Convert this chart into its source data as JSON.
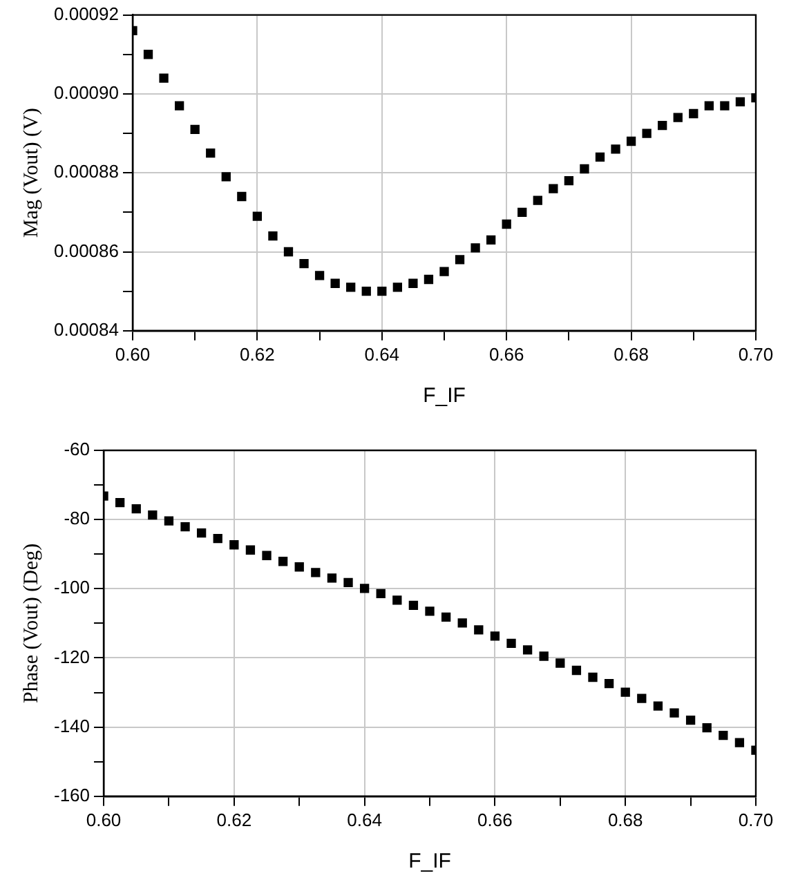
{
  "chart_data": [
    {
      "type": "scatter",
      "xlabel": "F_IF",
      "ylabel": "Mag (Vout) (V)",
      "color": "#000000",
      "marker": "square",
      "grid": true,
      "x": [
        0.6,
        0.6025,
        0.605,
        0.6075,
        0.61,
        0.6125,
        0.615,
        0.6175,
        0.62,
        0.6225,
        0.625,
        0.6275,
        0.63,
        0.6325,
        0.635,
        0.6375,
        0.64,
        0.6425,
        0.645,
        0.6475,
        0.65,
        0.6525,
        0.655,
        0.6575,
        0.66,
        0.6625,
        0.665,
        0.6675,
        0.67,
        0.6725,
        0.675,
        0.6775,
        0.68,
        0.6825,
        0.685,
        0.6875,
        0.69,
        0.6925,
        0.695,
        0.6975,
        0.7
      ],
      "values": [
        0.000916,
        0.00091,
        0.000904,
        0.000897,
        0.000891,
        0.000885,
        0.000879,
        0.000874,
        0.000869,
        0.000864,
        0.00086,
        0.000857,
        0.000854,
        0.000852,
        0.000851,
        0.00085,
        0.00085,
        0.000851,
        0.000852,
        0.000853,
        0.000855,
        0.000858,
        0.000861,
        0.000863,
        0.000867,
        0.00087,
        0.000873,
        0.000876,
        0.000878,
        0.000881,
        0.000884,
        0.000886,
        0.000888,
        0.00089,
        0.000892,
        0.000894,
        0.000895,
        0.000897,
        0.000897,
        0.000898,
        0.000899
      ],
      "xlim": [
        0.6,
        0.7
      ],
      "xticks": [
        {
          "value": 0.6,
          "label": "0.60"
        },
        {
          "value": 0.61,
          "label": null
        },
        {
          "value": 0.62,
          "label": "0.62"
        },
        {
          "value": 0.63,
          "label": null
        },
        {
          "value": 0.64,
          "label": "0.64"
        },
        {
          "value": 0.65,
          "label": null
        },
        {
          "value": 0.66,
          "label": "0.66"
        },
        {
          "value": 0.67,
          "label": null
        },
        {
          "value": 0.68,
          "label": "0.68"
        },
        {
          "value": 0.69,
          "label": null
        },
        {
          "value": 0.7,
          "label": "0.70"
        }
      ],
      "ylim": [
        0.00084,
        0.00092
      ],
      "yticks": [
        {
          "value": 0.00084,
          "label": "0.00084"
        },
        {
          "value": 0.00085,
          "label": null
        },
        {
          "value": 0.00086,
          "label": "0.00086"
        },
        {
          "value": 0.00087,
          "label": null
        },
        {
          "value": 0.00088,
          "label": "0.00088"
        },
        {
          "value": 0.00089,
          "label": null
        },
        {
          "value": 0.0009,
          "label": "0.00090"
        },
        {
          "value": 0.00091,
          "label": null
        },
        {
          "value": 0.00092,
          "label": "0.00092"
        }
      ]
    },
    {
      "type": "scatter",
      "xlabel": "F_IF",
      "ylabel": "Phase (Vout) (Deg)",
      "color": "#000000",
      "marker": "square",
      "grid": true,
      "x": [
        0.6,
        0.6025,
        0.605,
        0.6075,
        0.61,
        0.6125,
        0.615,
        0.6175,
        0.62,
        0.6225,
        0.625,
        0.6275,
        0.63,
        0.6325,
        0.635,
        0.6375,
        0.64,
        0.6425,
        0.645,
        0.6475,
        0.65,
        0.6525,
        0.655,
        0.6575,
        0.66,
        0.6625,
        0.665,
        0.6675,
        0.67,
        0.6725,
        0.675,
        0.6775,
        0.68,
        0.6825,
        0.685,
        0.6875,
        0.69,
        0.6925,
        0.695,
        0.6975,
        0.7
      ],
      "values": [
        -73.2,
        -75.1,
        -76.9,
        -78.7,
        -80.4,
        -82.1,
        -83.9,
        -85.5,
        -87.3,
        -88.8,
        -90.4,
        -92.1,
        -93.7,
        -95.3,
        -96.9,
        -98.2,
        -99.9,
        -101.4,
        -103.3,
        -104.8,
        -106.5,
        -108.2,
        -109.9,
        -111.9,
        -113.7,
        -115.8,
        -117.7,
        -119.5,
        -121.5,
        -123.6,
        -125.6,
        -127.4,
        -129.9,
        -131.7,
        -133.9,
        -135.9,
        -138.0,
        -140.2,
        -142.4,
        -144.5,
        -146.7
      ],
      "xlim": [
        0.6,
        0.7
      ],
      "xticks": [
        {
          "value": 0.6,
          "label": "0.60"
        },
        {
          "value": 0.61,
          "label": null
        },
        {
          "value": 0.62,
          "label": "0.62"
        },
        {
          "value": 0.63,
          "label": null
        },
        {
          "value": 0.64,
          "label": "0.64"
        },
        {
          "value": 0.65,
          "label": null
        },
        {
          "value": 0.66,
          "label": "0.66"
        },
        {
          "value": 0.67,
          "label": null
        },
        {
          "value": 0.68,
          "label": "0.68"
        },
        {
          "value": 0.69,
          "label": null
        },
        {
          "value": 0.7,
          "label": "0.70"
        }
      ],
      "ylim": [
        -160,
        -60
      ],
      "yticks": [
        -160,
        {
          "value": -150,
          "label": null
        },
        -140,
        {
          "value": -130,
          "label": null
        },
        -120,
        {
          "value": -110,
          "label": null
        },
        -100,
        {
          "value": -90,
          "label": null
        },
        -80,
        {
          "value": -70,
          "label": null
        },
        -60
      ]
    }
  ]
}
